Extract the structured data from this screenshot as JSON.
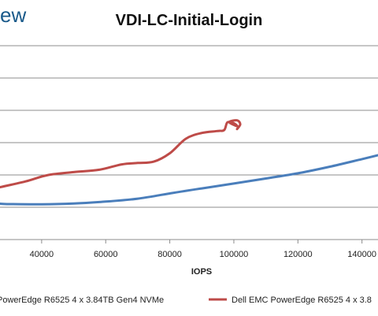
{
  "logo_fragment": "ew",
  "chart_data": {
    "type": "line",
    "title": "VDI-LC-Initial-Login",
    "xlabel": "IOPS",
    "ylabel": "",
    "x_ticks": [
      40000,
      60000,
      80000,
      100000,
      120000,
      140000
    ],
    "x_tick_labels": [
      "40000",
      "60000",
      "80000",
      "100000",
      "120000",
      "140000"
    ],
    "xlim": [
      27000,
      145000
    ],
    "ylim": [
      0,
      100
    ],
    "grid": true,
    "legend_position": "bottom",
    "series": [
      {
        "name": "PowerEdge R6525 4 x 3.84TB Gen4 NVMe",
        "color": "#4a7ebb",
        "points": [
          [
            27000,
            18.5
          ],
          [
            30000,
            18.3
          ],
          [
            40000,
            18.2
          ],
          [
            50000,
            18.6
          ],
          [
            60000,
            19.6
          ],
          [
            70000,
            21.1
          ],
          [
            80000,
            23.8
          ],
          [
            90000,
            26.4
          ],
          [
            100000,
            28.9
          ],
          [
            110000,
            31.5
          ],
          [
            120000,
            34.2
          ],
          [
            130000,
            37.6
          ],
          [
            140000,
            41.5
          ],
          [
            145000,
            43.5
          ]
        ]
      },
      {
        "name": "Dell EMC PowerEdge R6525 4 x 3.8",
        "color": "#be4b48",
        "points": [
          [
            27000,
            27.0
          ],
          [
            35000,
            30.0
          ],
          [
            42000,
            33.3
          ],
          [
            50000,
            34.8
          ],
          [
            58000,
            36.0
          ],
          [
            65000,
            38.8
          ],
          [
            70000,
            39.5
          ],
          [
            75000,
            40.2
          ],
          [
            80000,
            44.5
          ],
          [
            85000,
            52.0
          ],
          [
            90000,
            55.0
          ],
          [
            95000,
            56.0
          ],
          [
            97000,
            56.5
          ],
          [
            98000,
            60.5
          ],
          [
            100000,
            60.0
          ],
          [
            101000,
            58.5
          ],
          [
            98500,
            60.6
          ],
          [
            101000,
            61.5
          ],
          [
            102000,
            59.5
          ],
          [
            101000,
            57.0
          ]
        ]
      }
    ]
  }
}
